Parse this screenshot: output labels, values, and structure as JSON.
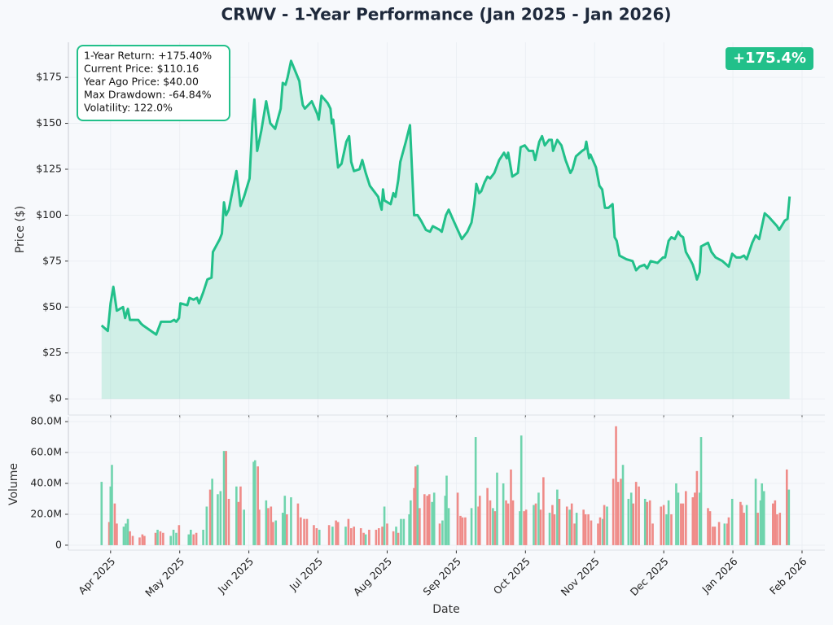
{
  "chart_data": [
    {
      "type": "line",
      "title": "CRWV - 1-Year Performance (Jan 2025 - Jan 2026)",
      "ylabel": "Price ($)",
      "stats": [
        "1-Year Return: +175.40%",
        "Current Price: $110.16",
        "Year Ago Price: $40.00",
        "Max Drawdown: -64.84%",
        "Volatility: 122.0%"
      ],
      "badge": "+175.4%",
      "badge_color": "#22c08a",
      "grid": true,
      "fill_color": "#22c08a",
      "xlim": [
        2.39,
        13.33
      ],
      "ylim": [
        -8.8,
        194.1
      ],
      "yticks": [
        {
          "value": 0,
          "label": "$0"
        },
        {
          "value": 25,
          "label": "$25"
        },
        {
          "value": 50,
          "label": "$50"
        },
        {
          "value": 75,
          "label": "$75"
        },
        {
          "value": 100,
          "label": "$100"
        },
        {
          "value": 125,
          "label": "$125"
        },
        {
          "value": 150,
          "label": "$150"
        },
        {
          "value": 175,
          "label": "$175"
        }
      ],
      "series": [
        {
          "color": "#22c08a",
          "x": [
            2.87,
            2.96,
            3.0,
            3.04,
            3.09,
            3.18,
            3.21,
            3.25,
            3.28,
            3.4,
            3.44,
            3.47,
            3.66,
            3.73,
            3.87,
            3.92,
            3.95,
            3.99,
            4.01,
            4.11,
            4.14,
            4.2,
            4.25,
            4.28,
            4.34,
            4.4,
            4.46,
            4.48,
            4.58,
            4.61,
            4.64,
            4.67,
            4.71,
            4.82,
            4.88,
            4.93,
            5.01,
            5.05,
            5.08,
            5.12,
            5.18,
            5.25,
            5.31,
            5.38,
            5.46,
            5.49,
            5.53,
            5.56,
            5.61,
            5.73,
            5.75,
            5.78,
            5.81,
            5.91,
            5.99,
            6.01,
            6.05,
            6.14,
            6.18,
            6.2,
            6.22,
            6.29,
            6.34,
            6.41,
            6.45,
            6.48,
            6.52,
            6.6,
            6.64,
            6.69,
            6.75,
            6.87,
            6.89,
            6.92,
            6.94,
            6.96,
            7.05,
            7.09,
            7.12,
            7.16,
            7.19,
            7.27,
            7.33,
            7.39,
            7.44,
            7.49,
            7.56,
            7.62,
            7.66,
            7.76,
            7.79,
            7.85,
            7.89,
            7.96,
            8.02,
            8.08,
            8.16,
            8.22,
            8.26,
            8.29,
            8.33,
            8.36,
            8.41,
            8.45,
            8.49,
            8.55,
            8.62,
            8.69,
            8.73,
            8.75,
            8.81,
            8.89,
            8.93,
            8.99,
            9.05,
            9.11,
            9.14,
            9.2,
            9.24,
            9.28,
            9.34,
            9.38,
            9.4,
            9.46,
            9.52,
            9.58,
            9.61,
            9.65,
            9.68,
            9.73,
            9.82,
            9.86,
            9.88,
            9.92,
            9.94,
            10.02,
            10.07,
            10.11,
            10.15,
            10.2,
            10.26,
            10.29,
            10.32,
            10.36,
            10.46,
            10.55,
            10.6,
            10.65,
            10.72,
            10.76,
            10.81,
            10.91,
            10.99,
            11.02,
            11.07,
            11.11,
            11.16,
            11.21,
            11.24,
            11.28,
            11.32,
            11.38,
            11.42,
            11.46,
            11.48,
            11.52,
            11.54,
            11.64,
            11.69,
            11.75,
            11.85,
            11.91,
            11.94,
            11.99,
            12.05,
            12.11,
            12.16,
            12.2,
            12.28,
            12.33,
            12.38,
            12.46,
            12.52,
            12.64,
            12.67,
            12.75,
            12.79,
            12.82
          ],
          "values": [
            40,
            37,
            52,
            61,
            48,
            50,
            44,
            49,
            43,
            43,
            41,
            40,
            35,
            42,
            42,
            43,
            42,
            44,
            52,
            51,
            55,
            54,
            55,
            52,
            58,
            65,
            66,
            80,
            87,
            90,
            107,
            100,
            103,
            124,
            105,
            110,
            120,
            150,
            163,
            135,
            146,
            162,
            150,
            147,
            158,
            172,
            171,
            175,
            184,
            173,
            167,
            160,
            158,
            162,
            155,
            152,
            165,
            161,
            158,
            150,
            152,
            126,
            128,
            140,
            143,
            129,
            124,
            125,
            130,
            123,
            116,
            110,
            107,
            103,
            114,
            108,
            106,
            112,
            110,
            119,
            129,
            140,
            149,
            100,
            100,
            97,
            92,
            91,
            94,
            92,
            91,
            100,
            103,
            97,
            92,
            87,
            91,
            96,
            106,
            117,
            112,
            113,
            118,
            121,
            120,
            123,
            130,
            134,
            131,
            134,
            121,
            123,
            137,
            138,
            135,
            135,
            130,
            140,
            143,
            138,
            141,
            141,
            135,
            141,
            138,
            130,
            127,
            123,
            125,
            132,
            135,
            136,
            140,
            131,
            133,
            126,
            116,
            114,
            104,
            104,
            106,
            88,
            86,
            78,
            76,
            75,
            70,
            72,
            73,
            71,
            75,
            74,
            77,
            77,
            86,
            88,
            87,
            91,
            89,
            88,
            80,
            76,
            73,
            68,
            65,
            69,
            83,
            85,
            80,
            77,
            75,
            73,
            72,
            79,
            77,
            77,
            78,
            76,
            85,
            89,
            87,
            101,
            99,
            94,
            92,
            97,
            98,
            110.16
          ]
        }
      ]
    },
    {
      "type": "bar",
      "xlabel": "Date",
      "ylabel": "Volume",
      "grid": true,
      "xlim": [
        2.39,
        13.33
      ],
      "ylim": [
        -3.2,
        83.2
      ],
      "xticks": [
        {
          "value": 3,
          "label": "Apr 2025"
        },
        {
          "value": 4,
          "label": "May 2025"
        },
        {
          "value": 5,
          "label": "Jun 2025"
        },
        {
          "value": 6,
          "label": "Jul 2025"
        },
        {
          "value": 7,
          "label": "Aug 2025"
        },
        {
          "value": 8,
          "label": "Sep 2025"
        },
        {
          "value": 9,
          "label": "Oct 2025"
        },
        {
          "value": 10,
          "label": "Nov 2025"
        },
        {
          "value": 11,
          "label": "Dec 2025"
        },
        {
          "value": 12,
          "label": "Jan 2026"
        },
        {
          "value": 13,
          "label": "Feb 2026"
        }
      ],
      "yticks": [
        0,
        {
          "value": 20,
          "label": "20.0M"
        },
        {
          "value": 40,
          "label": "40.0M"
        },
        {
          "value": 60,
          "label": "60.0M"
        },
        {
          "value": 80,
          "label": "80.0M"
        }
      ],
      "x": [
        2.87,
        2.98,
        3.0,
        3.02,
        3.06,
        3.09,
        3.19,
        3.22,
        3.25,
        3.28,
        3.32,
        3.42,
        3.46,
        3.49,
        3.65,
        3.68,
        3.72,
        3.76,
        3.87,
        3.91,
        3.95,
        3.99,
        4.13,
        4.16,
        4.2,
        4.24,
        4.34,
        4.39,
        4.44,
        4.47,
        4.55,
        4.59,
        4.64,
        4.67,
        4.71,
        4.82,
        4.85,
        4.88,
        4.93,
        5.07,
        5.09,
        5.13,
        5.15,
        5.25,
        5.28,
        5.32,
        5.35,
        5.39,
        5.49,
        5.52,
        5.55,
        5.61,
        5.71,
        5.75,
        5.8,
        5.84,
        5.94,
        5.98,
        6.02,
        6.16,
        6.21,
        6.26,
        6.29,
        6.4,
        6.44,
        6.48,
        6.52,
        6.62,
        6.66,
        6.69,
        6.74,
        6.84,
        6.88,
        6.93,
        6.96,
        7.0,
        7.09,
        7.13,
        7.16,
        7.2,
        7.24,
        7.32,
        7.34,
        7.39,
        7.41,
        7.44,
        7.47,
        7.54,
        7.58,
        7.61,
        7.65,
        7.68,
        7.76,
        7.8,
        7.84,
        7.86,
        7.89,
        8.02,
        8.06,
        8.09,
        8.13,
        8.22,
        8.28,
        8.32,
        8.34,
        8.45,
        8.49,
        8.53,
        8.56,
        8.59,
        8.68,
        8.72,
        8.75,
        8.79,
        8.82,
        8.92,
        8.94,
        8.98,
        9.01,
        9.12,
        9.15,
        9.19,
        9.22,
        9.26,
        9.35,
        9.39,
        9.42,
        9.46,
        9.49,
        9.6,
        9.64,
        9.67,
        9.71,
        9.74,
        9.84,
        9.87,
        9.91,
        9.95,
        10.05,
        10.08,
        10.12,
        10.14,
        10.18,
        10.27,
        10.31,
        10.34,
        10.38,
        10.41,
        10.49,
        10.53,
        10.56,
        10.6,
        10.64,
        10.73,
        10.76,
        10.8,
        10.84,
        10.96,
        11.0,
        11.04,
        11.07,
        11.11,
        11.18,
        11.21,
        11.25,
        11.28,
        11.32,
        11.42,
        11.45,
        11.48,
        11.52,
        11.54,
        11.64,
        11.67,
        11.71,
        11.74,
        11.8,
        11.88,
        11.92,
        11.94,
        11.99,
        12.11,
        12.13,
        12.16,
        12.2,
        12.33,
        12.36,
        12.4,
        12.42,
        12.45,
        12.58,
        12.61,
        12.64,
        12.68,
        12.78,
        12.81
      ],
      "values": [
        41,
        15,
        38,
        52,
        27,
        14,
        12,
        14,
        17,
        9,
        6,
        5,
        7,
        6,
        8,
        10,
        9,
        8,
        6,
        10,
        8,
        13,
        7,
        10,
        7,
        8,
        10,
        25,
        36,
        43,
        33,
        35,
        61,
        61,
        30,
        38,
        28,
        38,
        23,
        54,
        55,
        51,
        23,
        29,
        24,
        25,
        15,
        16,
        21,
        32,
        20,
        31,
        27,
        18,
        17,
        17,
        13,
        11,
        10,
        13,
        12,
        16,
        15,
        12,
        17,
        11,
        12,
        11,
        8,
        7,
        10,
        10,
        11,
        12,
        25,
        14,
        9,
        12,
        8,
        17,
        17,
        20,
        29,
        37,
        51,
        52,
        24,
        33,
        32,
        33,
        28,
        34,
        14,
        16,
        32,
        45,
        24,
        34,
        19,
        18,
        18,
        24,
        70,
        25,
        32,
        37,
        29,
        24,
        22,
        47,
        40,
        29,
        27,
        49,
        29,
        22,
        71,
        22,
        23,
        26,
        27,
        34,
        23,
        44,
        21,
        26,
        20,
        36,
        30,
        25,
        23,
        27,
        14,
        21,
        23,
        20,
        20,
        16,
        14,
        18,
        17,
        26,
        25,
        43,
        77,
        41,
        43,
        52,
        30,
        34,
        27,
        41,
        38,
        30,
        28,
        29,
        14,
        25,
        26,
        20,
        29,
        20,
        40,
        34,
        27,
        27,
        35,
        31,
        34,
        48,
        34,
        70,
        24,
        22,
        12,
        12,
        15,
        14,
        14,
        18,
        30,
        28,
        26,
        21,
        26,
        43,
        21,
        29,
        40,
        35,
        27,
        29,
        20,
        21,
        49,
        36
      ],
      "colors": [
        "#6fd4ad",
        "#ef8b88",
        "#6fd4ad",
        "#6fd4ad",
        "#ef8b88",
        "#ef8b88",
        "#6fd4ad",
        "#6fd4ad",
        "#6fd4ad",
        "#ef8b88",
        "#ef8b88",
        "#ef8b88",
        "#ef8b88",
        "#ef8b88",
        "#ef8b88",
        "#6fd4ad",
        "#ef8b88",
        "#ef8b88",
        "#6fd4ad",
        "#6fd4ad",
        "#6fd4ad",
        "#ef8b88",
        "#6fd4ad",
        "#6fd4ad",
        "#ef8b88",
        "#ef8b88",
        "#6fd4ad",
        "#6fd4ad",
        "#ef8b88",
        "#6fd4ad",
        "#6fd4ad",
        "#6fd4ad",
        "#6fd4ad",
        "#ef8b88",
        "#ef8b88",
        "#6fd4ad",
        "#ef8b88",
        "#ef8b88",
        "#6fd4ad",
        "#6fd4ad",
        "#6fd4ad",
        "#ef8b88",
        "#ef8b88",
        "#6fd4ad",
        "#ef8b88",
        "#ef8b88",
        "#ef8b88",
        "#6fd4ad",
        "#6fd4ad",
        "#6fd4ad",
        "#ef8b88",
        "#6fd4ad",
        "#ef8b88",
        "#ef8b88",
        "#ef8b88",
        "#ef8b88",
        "#ef8b88",
        "#ef8b88",
        "#6fd4ad",
        "#ef8b88",
        "#6fd4ad",
        "#ef8b88",
        "#ef8b88",
        "#6fd4ad",
        "#ef8b88",
        "#ef8b88",
        "#ef8b88",
        "#ef8b88",
        "#ef8b88",
        "#6fd4ad",
        "#ef8b88",
        "#ef8b88",
        "#ef8b88",
        "#ef8b88",
        "#6fd4ad",
        "#ef8b88",
        "#ef8b88",
        "#6fd4ad",
        "#ef8b88",
        "#6fd4ad",
        "#6fd4ad",
        "#6fd4ad",
        "#6fd4ad",
        "#ef8b88",
        "#ef8b88",
        "#6fd4ad",
        "#ef8b88",
        "#ef8b88",
        "#ef8b88",
        "#ef8b88",
        "#6fd4ad",
        "#6fd4ad",
        "#ef8b88",
        "#6fd4ad",
        "#6fd4ad",
        "#6fd4ad",
        "#6fd4ad",
        "#ef8b88",
        "#ef8b88",
        "#ef8b88",
        "#ef8b88",
        "#6fd4ad",
        "#6fd4ad",
        "#ef8b88",
        "#ef8b88",
        "#ef8b88",
        "#ef8b88",
        "#6fd4ad",
        "#ef8b88",
        "#6fd4ad",
        "#6fd4ad",
        "#ef8b88",
        "#ef8b88",
        "#ef8b88",
        "#ef8b88",
        "#6fd4ad",
        "#6fd4ad",
        "#ef8b88",
        "#ef8b88",
        "#6fd4ad",
        "#ef8b88",
        "#6fd4ad",
        "#ef8b88",
        "#ef8b88",
        "#6fd4ad",
        "#ef8b88",
        "#ef8b88",
        "#6fd4ad",
        "#ef8b88",
        "#ef8b88",
        "#6fd4ad",
        "#ef8b88",
        "#ef8b88",
        "#6fd4ad",
        "#ef8b88",
        "#ef8b88",
        "#ef8b88",
        "#ef8b88",
        "#ef8b88",
        "#ef8b88",
        "#6fd4ad",
        "#ef8b88",
        "#6fd4ad",
        "#ef8b88",
        "#ef8b88",
        "#ef8b88",
        "#ef8b88",
        "#6fd4ad",
        "#6fd4ad",
        "#6fd4ad",
        "#ef8b88",
        "#ef8b88",
        "#ef8b88",
        "#6fd4ad",
        "#ef8b88",
        "#ef8b88",
        "#ef8b88",
        "#ef8b88",
        "#ef8b88",
        "#6fd4ad",
        "#6fd4ad",
        "#ef8b88",
        "#6fd4ad",
        "#6fd4ad",
        "#ef8b88",
        "#ef8b88",
        "#ef8b88",
        "#ef8b88",
        "#ef8b88",
        "#ef8b88",
        "#6fd4ad",
        "#6fd4ad",
        "#ef8b88",
        "#ef8b88",
        "#ef8b88",
        "#ef8b88",
        "#ef8b88",
        "#6fd4ad",
        "#ef8b88",
        "#ef8b88",
        "#6fd4ad",
        "#ef8b88",
        "#ef8b88",
        "#ef8b88",
        "#6fd4ad",
        "#6fd4ad",
        "#ef8b88",
        "#6fd4ad",
        "#6fd4ad",
        "#6fd4ad",
        "#ef8b88",
        "#ef8b88",
        "#ef8b88",
        "#ef8b88",
        "#ef8b88",
        "#6fd4ad"
      ]
    }
  ]
}
